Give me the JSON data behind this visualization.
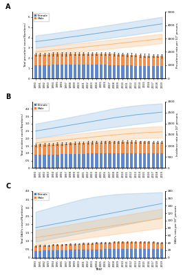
{
  "years": [
    1990,
    1991,
    1992,
    1993,
    1994,
    1995,
    1996,
    1997,
    1998,
    1999,
    2000,
    2001,
    2002,
    2003,
    2004,
    2005,
    2006,
    2007,
    2008,
    2009,
    2010,
    2011,
    2012,
    2013,
    2014,
    2015,
    2016,
    2017,
    2018,
    2019
  ],
  "panel_A": {
    "title_label": "A",
    "ylabel_left": "Total prevalent cases(Numbers)",
    "ylabel_right": "Prevalence rate per 10⁵ persons",
    "scale_label": "1e7",
    "ylim_left": [
      0,
      6.5
    ],
    "ylim_right": [
      0,
      5000
    ],
    "yticks_left": [
      0,
      1,
      2,
      3,
      4,
      5,
      6
    ],
    "yticks_right": [
      0,
      1000,
      2000,
      3000,
      4000,
      5000
    ],
    "female_bars": [
      1.3,
      1.3,
      1.31,
      1.31,
      1.32,
      1.32,
      1.32,
      1.32,
      1.33,
      1.33,
      1.33,
      1.33,
      1.33,
      1.33,
      1.33,
      1.33,
      1.32,
      1.31,
      1.3,
      1.28,
      1.27,
      1.26,
      1.25,
      1.24,
      1.23,
      1.22,
      1.21,
      1.2,
      1.2,
      1.19
    ],
    "male_bars": [
      1.05,
      1.05,
      1.06,
      1.06,
      1.07,
      1.07,
      1.07,
      1.08,
      1.08,
      1.08,
      1.09,
      1.09,
      1.09,
      1.09,
      1.1,
      1.1,
      1.1,
      1.1,
      1.09,
      1.08,
      1.08,
      1.07,
      1.06,
      1.05,
      1.04,
      1.03,
      1.03,
      1.02,
      1.01,
      1.01
    ],
    "female_err": [
      0.15,
      0.15,
      0.15,
      0.15,
      0.15,
      0.15,
      0.15,
      0.15,
      0.15,
      0.15,
      0.15,
      0.15,
      0.15,
      0.15,
      0.15,
      0.15,
      0.15,
      0.15,
      0.15,
      0.15,
      0.15,
      0.15,
      0.15,
      0.15,
      0.15,
      0.15,
      0.15,
      0.15,
      0.15,
      0.15
    ],
    "female_line": [
      3.6,
      3.65,
      3.7,
      3.76,
      3.81,
      3.87,
      3.93,
      3.99,
      4.05,
      4.1,
      4.16,
      4.22,
      4.28,
      4.34,
      4.4,
      4.46,
      4.52,
      4.58,
      4.65,
      4.71,
      4.77,
      4.83,
      4.89,
      4.96,
      5.02,
      5.08,
      5.15,
      5.21,
      5.27,
      5.34
    ],
    "female_line_upper": [
      4.2,
      4.25,
      4.3,
      4.36,
      4.42,
      4.48,
      4.54,
      4.6,
      4.66,
      4.72,
      4.78,
      4.84,
      4.9,
      4.97,
      5.03,
      5.09,
      5.16,
      5.22,
      5.29,
      5.35,
      5.42,
      5.48,
      5.55,
      5.62,
      5.68,
      5.75,
      5.82,
      5.88,
      5.95,
      6.02
    ],
    "female_line_lower": [
      3.0,
      3.05,
      3.1,
      3.16,
      3.21,
      3.27,
      3.33,
      3.38,
      3.44,
      3.5,
      3.55,
      3.61,
      3.67,
      3.72,
      3.78,
      3.84,
      3.89,
      3.95,
      4.01,
      4.07,
      4.12,
      4.18,
      4.24,
      4.3,
      4.36,
      4.42,
      4.48,
      4.54,
      4.6,
      4.66
    ],
    "male_line": [
      2.6,
      2.64,
      2.68,
      2.72,
      2.76,
      2.81,
      2.85,
      2.89,
      2.93,
      2.98,
      3.02,
      3.06,
      3.11,
      3.15,
      3.2,
      3.24,
      3.29,
      3.33,
      3.38,
      3.42,
      3.47,
      3.51,
      3.56,
      3.61,
      3.65,
      3.7,
      3.75,
      3.8,
      3.84,
      3.89
    ],
    "male_line_upper": [
      3.0,
      3.04,
      3.08,
      3.12,
      3.17,
      3.21,
      3.26,
      3.3,
      3.35,
      3.39,
      3.44,
      3.48,
      3.53,
      3.58,
      3.62,
      3.67,
      3.72,
      3.77,
      3.82,
      3.86,
      3.91,
      3.96,
      4.01,
      4.06,
      4.11,
      4.16,
      4.21,
      4.26,
      4.31,
      4.36
    ],
    "male_line_lower": [
      2.2,
      2.24,
      2.28,
      2.32,
      2.36,
      2.41,
      2.45,
      2.49,
      2.53,
      2.57,
      2.62,
      2.66,
      2.7,
      2.74,
      2.78,
      2.82,
      2.86,
      2.9,
      2.95,
      2.99,
      3.03,
      3.07,
      3.11,
      3.16,
      3.2,
      3.24,
      3.29,
      3.34,
      3.38,
      3.43
    ]
  },
  "panel_B": {
    "title_label": "B",
    "ylabel_left": "Total incident cases(Numbers)",
    "ylabel_right": "Incidence rate per 10⁵ persons",
    "scale_label": "1e7",
    "ylim_left": [
      0,
      4.5
    ],
    "ylim_right": [
      0,
      3000
    ],
    "yticks_left": [
      0,
      0.5,
      1.0,
      1.5,
      2.0,
      2.5,
      3.0,
      3.5,
      4.0
    ],
    "yticks_right": [
      0,
      500,
      1000,
      1500,
      2000,
      2500,
      3000
    ],
    "female_bars": [
      0.88,
      0.89,
      0.9,
      0.91,
      0.91,
      0.92,
      0.93,
      0.93,
      0.94,
      0.95,
      0.96,
      0.96,
      0.97,
      0.97,
      0.98,
      0.98,
      0.99,
      0.99,
      0.99,
      0.99,
      0.99,
      0.99,
      0.99,
      0.99,
      0.98,
      0.98,
      0.98,
      0.97,
      0.97,
      0.97
    ],
    "male_bars": [
      0.68,
      0.69,
      0.7,
      0.7,
      0.71,
      0.72,
      0.72,
      0.73,
      0.74,
      0.74,
      0.75,
      0.75,
      0.76,
      0.76,
      0.77,
      0.77,
      0.78,
      0.78,
      0.78,
      0.78,
      0.79,
      0.79,
      0.79,
      0.79,
      0.79,
      0.79,
      0.79,
      0.79,
      0.78,
      0.78
    ],
    "female_err": [
      0.08,
      0.08,
      0.08,
      0.08,
      0.08,
      0.08,
      0.08,
      0.08,
      0.08,
      0.08,
      0.08,
      0.08,
      0.08,
      0.08,
      0.08,
      0.08,
      0.08,
      0.08,
      0.08,
      0.08,
      0.08,
      0.08,
      0.08,
      0.08,
      0.08,
      0.08,
      0.08,
      0.08,
      0.08,
      0.08
    ],
    "female_line": [
      2.5,
      2.55,
      2.6,
      2.65,
      2.7,
      2.75,
      2.8,
      2.85,
      2.9,
      2.95,
      3.0,
      3.05,
      3.1,
      3.15,
      3.2,
      3.25,
      3.3,
      3.35,
      3.4,
      3.44,
      3.48,
      3.52,
      3.56,
      3.6,
      3.63,
      3.66,
      3.69,
      3.72,
      3.75,
      3.78
    ],
    "female_line_upper": [
      3.0,
      3.05,
      3.1,
      3.16,
      3.21,
      3.27,
      3.33,
      3.38,
      3.44,
      3.5,
      3.56,
      3.61,
      3.67,
      3.73,
      3.79,
      3.85,
      3.91,
      3.97,
      4.03,
      4.08,
      4.12,
      4.16,
      4.2,
      4.23,
      4.26,
      4.29,
      4.31,
      4.33,
      4.35,
      4.37
    ],
    "female_line_lower": [
      2.0,
      2.05,
      2.1,
      2.14,
      2.19,
      2.23,
      2.27,
      2.32,
      2.36,
      2.4,
      2.44,
      2.49,
      2.53,
      2.57,
      2.61,
      2.65,
      2.69,
      2.73,
      2.77,
      2.8,
      2.84,
      2.88,
      2.92,
      2.97,
      3.0,
      3.03,
      3.07,
      3.11,
      3.15,
      3.19
    ],
    "male_line": [
      1.7,
      1.73,
      1.76,
      1.79,
      1.82,
      1.85,
      1.88,
      1.91,
      1.94,
      1.97,
      2.0,
      2.03,
      2.06,
      2.09,
      2.12,
      2.15,
      2.18,
      2.21,
      2.24,
      2.26,
      2.29,
      2.31,
      2.33,
      2.35,
      2.37,
      2.39,
      2.41,
      2.42,
      2.43,
      2.44
    ],
    "male_line_upper": [
      2.0,
      2.03,
      2.07,
      2.1,
      2.13,
      2.17,
      2.2,
      2.23,
      2.27,
      2.3,
      2.33,
      2.37,
      2.4,
      2.43,
      2.47,
      2.5,
      2.53,
      2.57,
      2.6,
      2.63,
      2.65,
      2.68,
      2.7,
      2.72,
      2.74,
      2.76,
      2.78,
      2.8,
      2.81,
      2.82
    ],
    "male_line_lower": [
      1.4,
      1.43,
      1.45,
      1.48,
      1.51,
      1.53,
      1.56,
      1.59,
      1.61,
      1.64,
      1.67,
      1.69,
      1.72,
      1.75,
      1.77,
      1.8,
      1.83,
      1.85,
      1.88,
      1.89,
      1.93,
      1.94,
      1.96,
      1.98,
      2.0,
      2.02,
      2.04,
      2.04,
      2.05,
      2.06
    ]
  },
  "panel_C": {
    "title_label": "C",
    "ylabel_left": "Total DALYs cases(Numbers)",
    "ylabel_right": "DALYs rate per 10⁵ persons",
    "scale_label": "1e6",
    "ylim_left": [
      0,
      4.0
    ],
    "ylim_right": [
      0,
      180
    ],
    "yticks_left": [
      0,
      0.5,
      1.0,
      1.5,
      2.0,
      2.5,
      3.0,
      3.5,
      4.0
    ],
    "yticks_right": [
      0,
      20,
      40,
      60,
      80,
      100,
      120,
      140,
      160,
      180
    ],
    "female_bars": [
      0.4,
      0.41,
      0.42,
      0.42,
      0.43,
      0.44,
      0.44,
      0.45,
      0.46,
      0.46,
      0.47,
      0.48,
      0.48,
      0.49,
      0.5,
      0.5,
      0.51,
      0.51,
      0.52,
      0.52,
      0.52,
      0.52,
      0.52,
      0.53,
      0.53,
      0.53,
      0.52,
      0.52,
      0.51,
      0.51
    ],
    "male_bars": [
      0.3,
      0.31,
      0.31,
      0.32,
      0.32,
      0.33,
      0.33,
      0.34,
      0.35,
      0.35,
      0.36,
      0.36,
      0.37,
      0.37,
      0.38,
      0.38,
      0.39,
      0.39,
      0.4,
      0.4,
      0.4,
      0.4,
      0.4,
      0.41,
      0.41,
      0.41,
      0.41,
      0.4,
      0.4,
      0.39
    ],
    "female_err": [
      0.04,
      0.04,
      0.04,
      0.04,
      0.04,
      0.04,
      0.04,
      0.04,
      0.04,
      0.04,
      0.04,
      0.04,
      0.04,
      0.04,
      0.04,
      0.04,
      0.04,
      0.04,
      0.04,
      0.04,
      0.04,
      0.04,
      0.04,
      0.04,
      0.04,
      0.04,
      0.04,
      0.04,
      0.04,
      0.04
    ],
    "female_line": [
      1.8,
      1.85,
      1.9,
      1.95,
      2.0,
      2.05,
      2.1,
      2.15,
      2.2,
      2.25,
      2.3,
      2.35,
      2.4,
      2.45,
      2.5,
      2.55,
      2.6,
      2.65,
      2.7,
      2.75,
      2.8,
      2.85,
      2.9,
      2.95,
      3.0,
      3.05,
      3.1,
      3.15,
      3.2,
      3.25
    ],
    "female_line_upper": [
      2.75,
      2.83,
      2.9,
      2.97,
      3.05,
      3.12,
      3.19,
      3.26,
      3.33,
      3.4,
      3.47,
      3.53,
      3.58,
      3.63,
      3.67,
      3.71,
      3.74,
      3.77,
      3.8,
      3.82,
      3.84,
      3.85,
      3.86,
      3.87,
      3.88,
      3.89,
      3.9,
      3.91,
      3.92,
      3.93
    ],
    "female_line_lower": [
      0.95,
      1.0,
      1.05,
      1.1,
      1.15,
      1.2,
      1.25,
      1.3,
      1.35,
      1.4,
      1.45,
      1.5,
      1.55,
      1.6,
      1.65,
      1.7,
      1.75,
      1.8,
      1.85,
      1.9,
      1.95,
      2.0,
      2.05,
      2.1,
      2.15,
      2.2,
      2.25,
      2.3,
      2.35,
      2.4
    ],
    "male_line": [
      1.2,
      1.24,
      1.28,
      1.32,
      1.36,
      1.4,
      1.44,
      1.48,
      1.52,
      1.56,
      1.6,
      1.64,
      1.68,
      1.72,
      1.76,
      1.8,
      1.84,
      1.88,
      1.92,
      1.96,
      2.0,
      2.04,
      2.08,
      2.12,
      2.16,
      2.2,
      2.24,
      2.28,
      2.32,
      2.36
    ],
    "male_line_upper": [
      1.65,
      1.69,
      1.74,
      1.78,
      1.82,
      1.87,
      1.91,
      1.95,
      2.0,
      2.04,
      2.09,
      2.13,
      2.17,
      2.22,
      2.26,
      2.31,
      2.35,
      2.4,
      2.44,
      2.49,
      2.53,
      2.58,
      2.62,
      2.67,
      2.71,
      2.76,
      2.8,
      2.85,
      2.89,
      2.94
    ],
    "male_line_lower": [
      0.75,
      0.79,
      0.82,
      0.86,
      0.9,
      0.93,
      0.97,
      1.01,
      1.04,
      1.08,
      1.11,
      1.15,
      1.19,
      1.22,
      1.26,
      1.29,
      1.33,
      1.36,
      1.4,
      1.43,
      1.47,
      1.5,
      1.54,
      1.57,
      1.61,
      1.64,
      1.68,
      1.71,
      1.75,
      1.78
    ]
  },
  "female_color": "#4472C4",
  "male_color": "#ED7D31",
  "female_line_color": "#6CA9D8",
  "male_line_color": "#F4B87A",
  "bar_width": 0.65,
  "xlabel": "Year",
  "background_color": "#FFFFFF"
}
